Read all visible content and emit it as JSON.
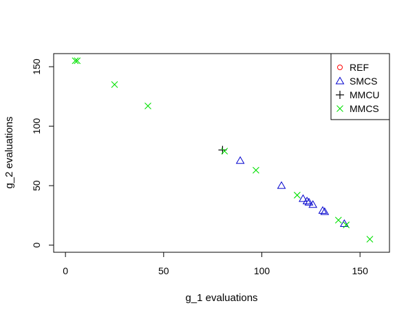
{
  "chart_data": {
    "type": "scatter",
    "title": "",
    "xlabel": "g_1 evaluations",
    "ylabel": "g_2 evaluations",
    "xlim": [
      -6,
      165
    ],
    "ylim": [
      -6,
      161
    ],
    "xticks": [
      0,
      50,
      100,
      150
    ],
    "yticks": [
      0,
      50,
      100,
      150
    ],
    "grid": false,
    "legend_position": "top-right",
    "series": [
      {
        "name": "REF",
        "marker": "circle",
        "color": "#ff0000",
        "points": []
      },
      {
        "name": "SMCS",
        "marker": "triangle",
        "color": "#0000cd",
        "points": [
          [
            89,
            71
          ],
          [
            110,
            50
          ],
          [
            121,
            39
          ],
          [
            123,
            37
          ],
          [
            124,
            36
          ],
          [
            126,
            34
          ],
          [
            131,
            29
          ],
          [
            132,
            28
          ],
          [
            142,
            18
          ]
        ]
      },
      {
        "name": "MMCU",
        "marker": "plus",
        "color": "#000000",
        "points": [
          [
            80,
            80
          ]
        ]
      },
      {
        "name": "MMCS",
        "marker": "cross",
        "color": "#00e000",
        "points": [
          [
            5,
            155
          ],
          [
            6,
            155
          ],
          [
            25,
            135
          ],
          [
            42,
            117
          ],
          [
            81,
            79
          ],
          [
            97,
            63
          ],
          [
            118,
            42
          ],
          [
            139,
            21
          ],
          [
            143,
            17
          ],
          [
            155,
            5
          ]
        ]
      }
    ]
  }
}
